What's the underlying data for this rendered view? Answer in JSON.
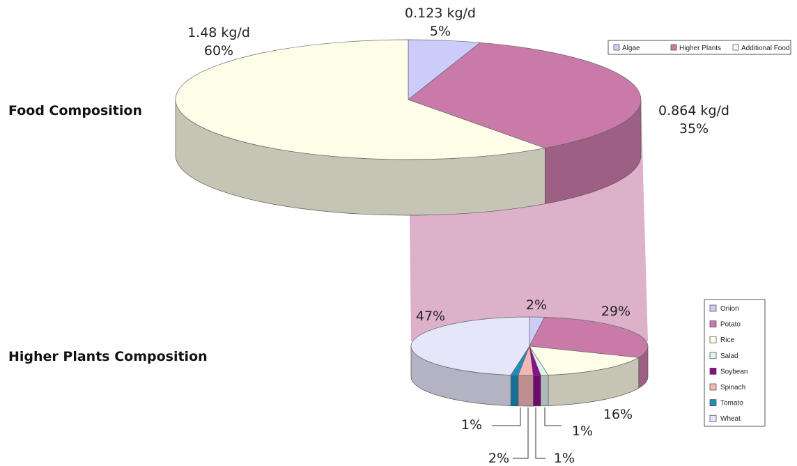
{
  "titles": {
    "food": "Food Composition",
    "higher": "Higher Plants Composition"
  },
  "colors": {
    "algae": "#ccccfa",
    "higher_plants": "#c97aa9",
    "additional_food": "#fefde8",
    "onion": "#ccccfa",
    "potato": "#c97aa9",
    "rice": "#fefde8",
    "salad": "#dff2ef",
    "soybean": "#8a0d8c",
    "spinach": "#f4b7b7",
    "tomato": "#1b8fc2",
    "wheat": "#e6e6fb",
    "connector": "#d9a8c4"
  },
  "chart_data": [
    {
      "type": "pie",
      "categories": [
        "Algae",
        "Higher Plants",
        "Additional Food"
      ],
      "values": [
        5,
        35,
        60
      ],
      "amounts": [
        "0.123 kg/d",
        "0.864 kg/d",
        "1.48 kg/d"
      ],
      "labels": [
        "5%",
        "35%",
        "60%"
      ],
      "legend_position": "top-right"
    },
    {
      "type": "pie",
      "categories": [
        "Onion",
        "Potato",
        "Rice",
        "Salad",
        "Soybean",
        "Spinach",
        "Tomato",
        "Wheat"
      ],
      "values": [
        2,
        29,
        16,
        1,
        1,
        2,
        1,
        47
      ],
      "labels": [
        "2%",
        "29%",
        "16%",
        "1%",
        "1%",
        "2%",
        "1%",
        "47%"
      ],
      "legend_position": "right"
    }
  ]
}
